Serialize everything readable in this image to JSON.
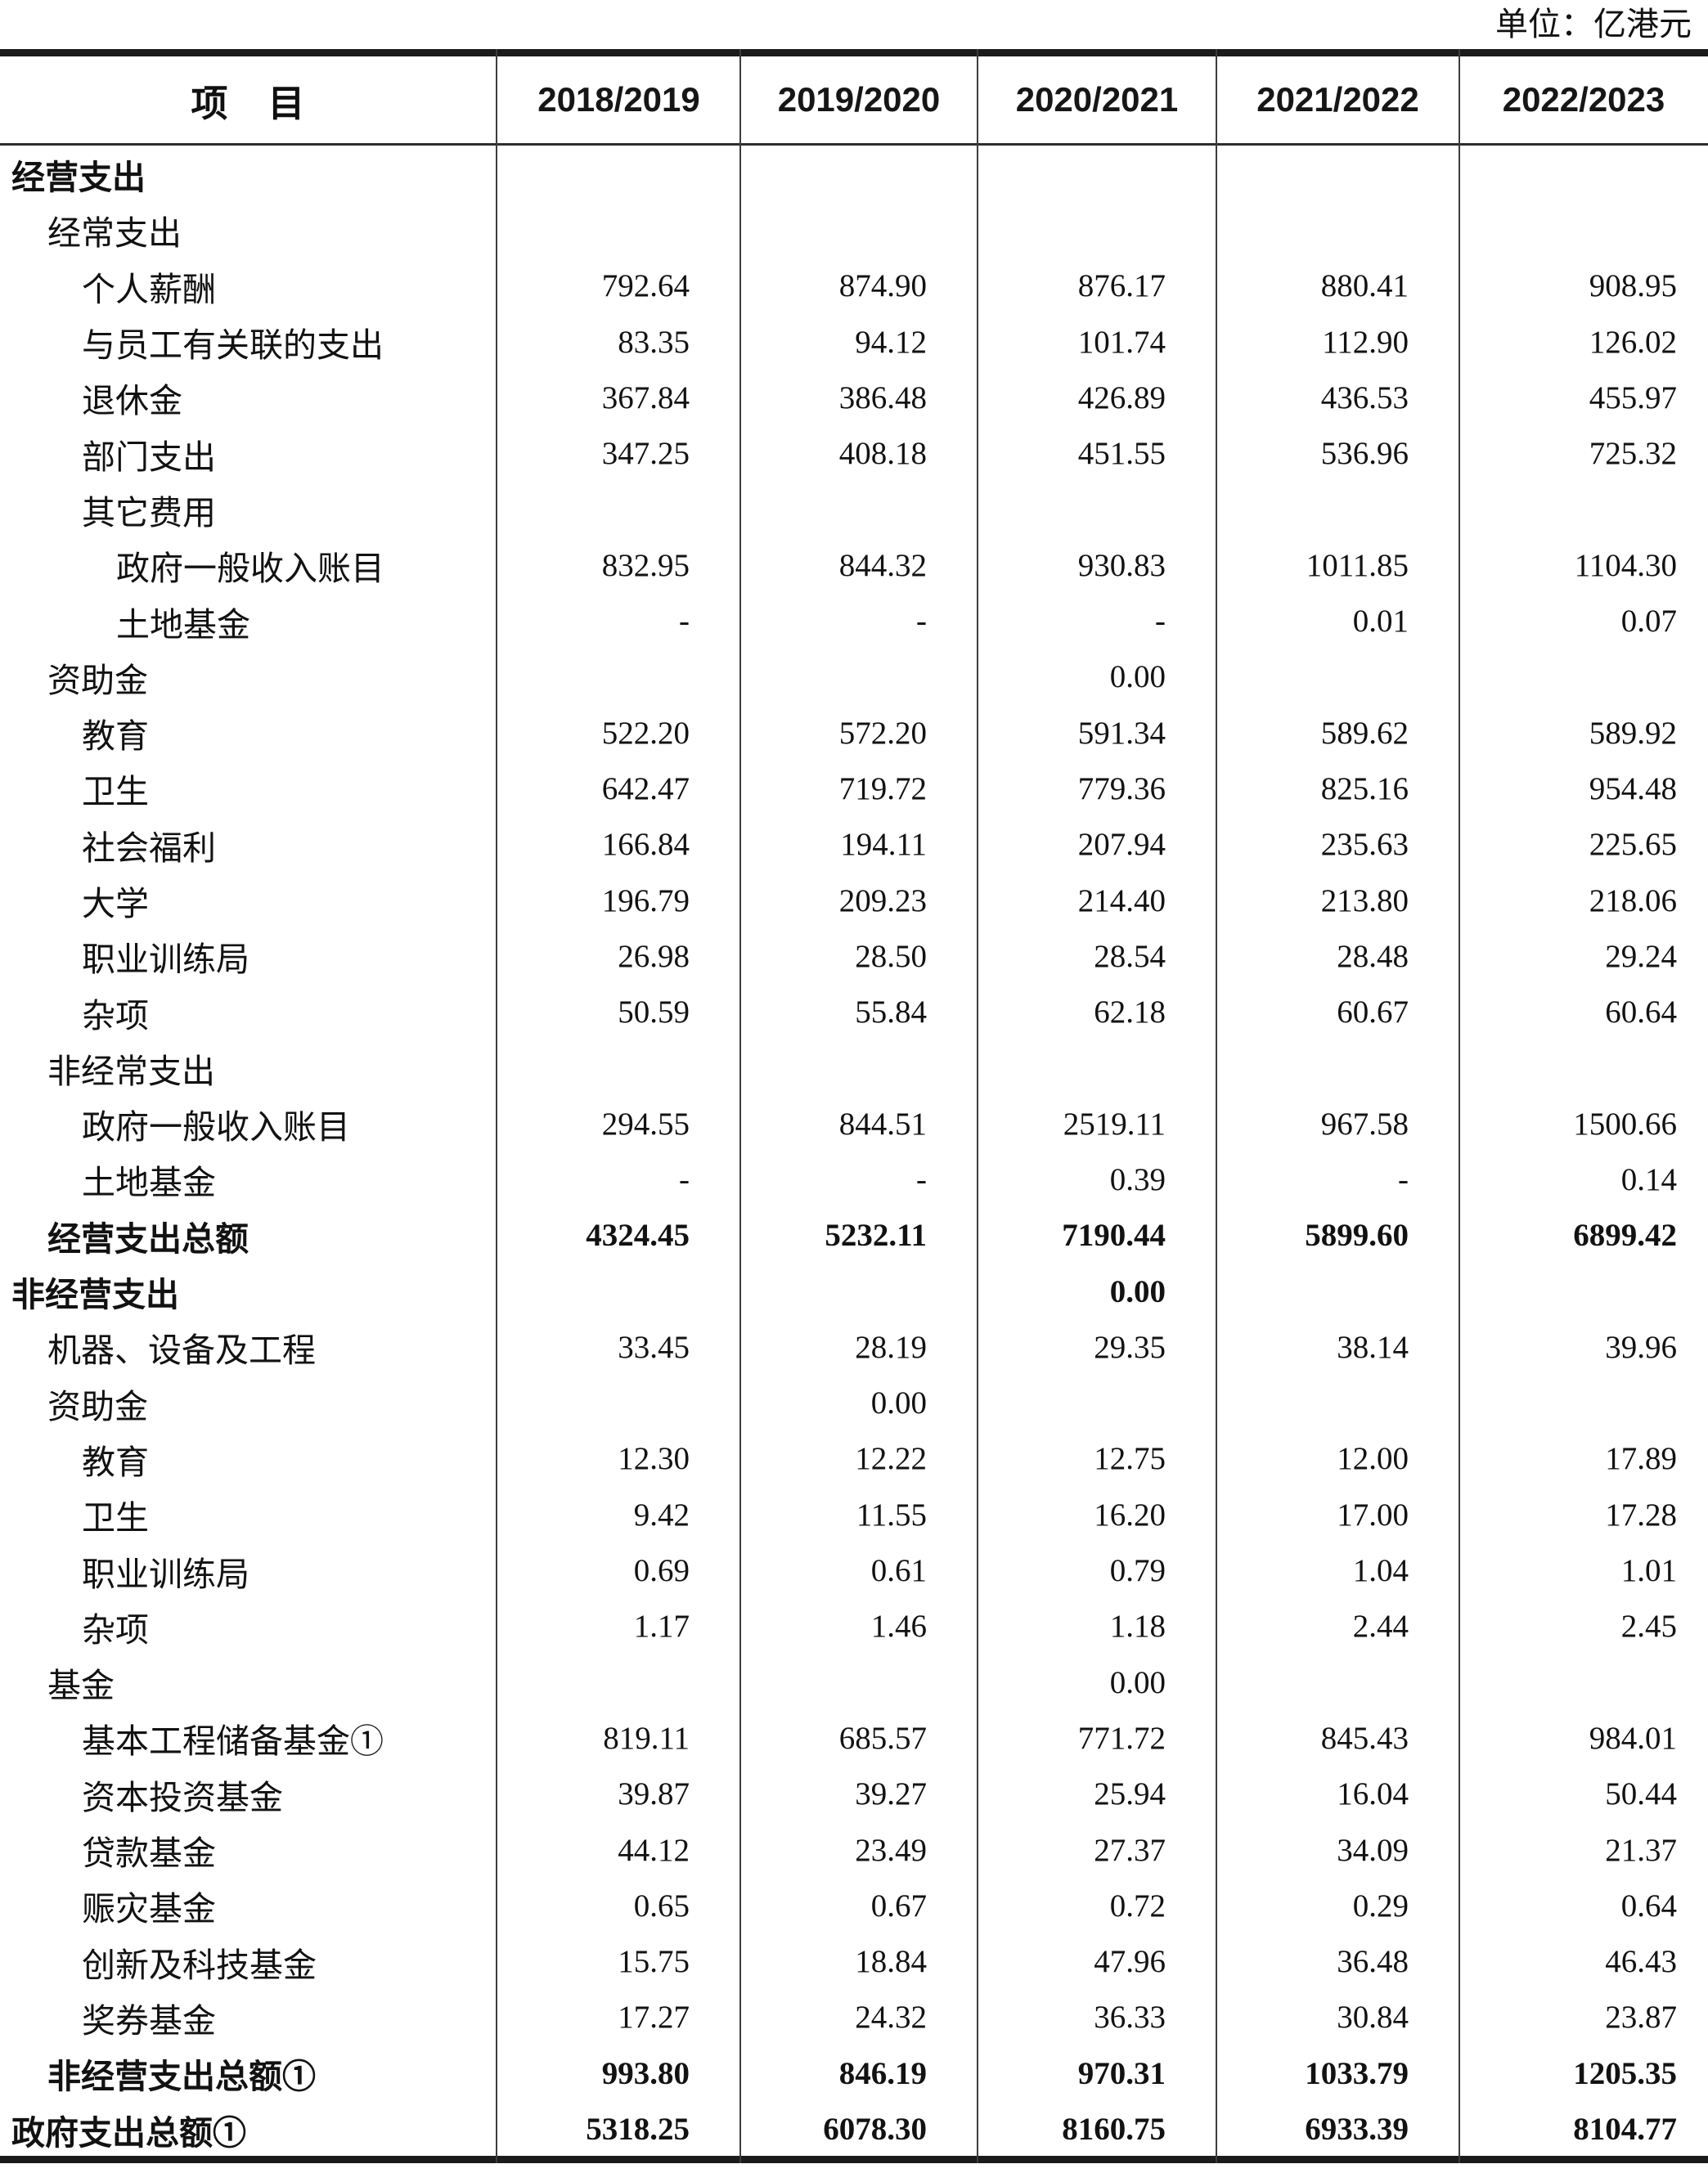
{
  "unit_label": "单位：亿港元",
  "table": {
    "header": {
      "item_label": "项　目",
      "years": [
        "2018/2019",
        "2019/2020",
        "2020/2021",
        "2021/2022",
        "2022/2023"
      ]
    },
    "rows": [
      {
        "label": "经营支出",
        "indent": 0,
        "bold": true,
        "values": [
          "",
          "",
          "",
          "",
          ""
        ]
      },
      {
        "label": "经常支出",
        "indent": 1,
        "bold": false,
        "values": [
          "",
          "",
          "",
          "",
          ""
        ]
      },
      {
        "label": "个人薪酬",
        "indent": 2,
        "bold": false,
        "values": [
          "792.64",
          "874.90",
          "876.17",
          "880.41",
          "908.95"
        ]
      },
      {
        "label": "与员工有关联的支出",
        "indent": 2,
        "bold": false,
        "values": [
          "83.35",
          "94.12",
          "101.74",
          "112.90",
          "126.02"
        ]
      },
      {
        "label": "退休金",
        "indent": 2,
        "bold": false,
        "values": [
          "367.84",
          "386.48",
          "426.89",
          "436.53",
          "455.97"
        ]
      },
      {
        "label": "部门支出",
        "indent": 2,
        "bold": false,
        "values": [
          "347.25",
          "408.18",
          "451.55",
          "536.96",
          "725.32"
        ]
      },
      {
        "label": "其它费用",
        "indent": 2,
        "bold": false,
        "values": [
          "",
          "",
          "",
          "",
          ""
        ]
      },
      {
        "label": "政府一般收入账目",
        "indent": 3,
        "bold": false,
        "values": [
          "832.95",
          "844.32",
          "930.83",
          "1011.85",
          "1104.30"
        ]
      },
      {
        "label": "土地基金",
        "indent": 3,
        "bold": false,
        "values": [
          "-",
          "-",
          "-",
          "0.01",
          "0.07"
        ]
      },
      {
        "label": "资助金",
        "indent": 1,
        "bold": false,
        "values": [
          "",
          "",
          "0.00",
          "",
          ""
        ]
      },
      {
        "label": "教育",
        "indent": 2,
        "bold": false,
        "values": [
          "522.20",
          "572.20",
          "591.34",
          "589.62",
          "589.92"
        ]
      },
      {
        "label": "卫生",
        "indent": 2,
        "bold": false,
        "values": [
          "642.47",
          "719.72",
          "779.36",
          "825.16",
          "954.48"
        ]
      },
      {
        "label": "社会福利",
        "indent": 2,
        "bold": false,
        "values": [
          "166.84",
          "194.11",
          "207.94",
          "235.63",
          "225.65"
        ]
      },
      {
        "label": "大学",
        "indent": 2,
        "bold": false,
        "values": [
          "196.79",
          "209.23",
          "214.40",
          "213.80",
          "218.06"
        ]
      },
      {
        "label": "职业训练局",
        "indent": 2,
        "bold": false,
        "values": [
          "26.98",
          "28.50",
          "28.54",
          "28.48",
          "29.24"
        ]
      },
      {
        "label": "杂项",
        "indent": 2,
        "bold": false,
        "values": [
          "50.59",
          "55.84",
          "62.18",
          "60.67",
          "60.64"
        ]
      },
      {
        "label": "非经常支出",
        "indent": 1,
        "bold": false,
        "values": [
          "",
          "",
          "",
          "",
          ""
        ]
      },
      {
        "label": "政府一般收入账目",
        "indent": 2,
        "bold": false,
        "values": [
          "294.55",
          "844.51",
          "2519.11",
          "967.58",
          "1500.66"
        ]
      },
      {
        "label": "土地基金",
        "indent": 2,
        "bold": false,
        "values": [
          "-",
          "-",
          "0.39",
          "-",
          "0.14"
        ]
      },
      {
        "label": "经营支出总额",
        "indent": 1,
        "bold": true,
        "values": [
          "4324.45",
          "5232.11",
          "7190.44",
          "5899.60",
          "6899.42"
        ]
      },
      {
        "label": "非经营支出",
        "indent": 0,
        "bold": true,
        "values": [
          "",
          "",
          "0.00",
          "",
          ""
        ]
      },
      {
        "label": "机器、设备及工程",
        "indent": 1,
        "bold": false,
        "values": [
          "33.45",
          "28.19",
          "29.35",
          "38.14",
          "39.96"
        ]
      },
      {
        "label": "资助金",
        "indent": 1,
        "bold": false,
        "values": [
          "",
          "0.00",
          "",
          "",
          ""
        ]
      },
      {
        "label": "教育",
        "indent": 2,
        "bold": false,
        "values": [
          "12.30",
          "12.22",
          "12.75",
          "12.00",
          "17.89"
        ]
      },
      {
        "label": "卫生",
        "indent": 2,
        "bold": false,
        "values": [
          "9.42",
          "11.55",
          "16.20",
          "17.00",
          "17.28"
        ]
      },
      {
        "label": "职业训练局",
        "indent": 2,
        "bold": false,
        "values": [
          "0.69",
          "0.61",
          "0.79",
          "1.04",
          "1.01"
        ]
      },
      {
        "label": "杂项",
        "indent": 2,
        "bold": false,
        "values": [
          "1.17",
          "1.46",
          "1.18",
          "2.44",
          "2.45"
        ]
      },
      {
        "label": "基金",
        "indent": 1,
        "bold": false,
        "values": [
          "",
          "",
          "0.00",
          "",
          ""
        ]
      },
      {
        "label": "基本工程储备基金①",
        "indent": 2,
        "bold": false,
        "values": [
          "819.11",
          "685.57",
          "771.72",
          "845.43",
          "984.01"
        ]
      },
      {
        "label": "资本投资基金",
        "indent": 2,
        "bold": false,
        "values": [
          "39.87",
          "39.27",
          "25.94",
          "16.04",
          "50.44"
        ]
      },
      {
        "label": "贷款基金",
        "indent": 2,
        "bold": false,
        "values": [
          "44.12",
          "23.49",
          "27.37",
          "34.09",
          "21.37"
        ]
      },
      {
        "label": "赈灾基金",
        "indent": 2,
        "bold": false,
        "values": [
          "0.65",
          "0.67",
          "0.72",
          "0.29",
          "0.64"
        ]
      },
      {
        "label": "创新及科技基金",
        "indent": 2,
        "bold": false,
        "values": [
          "15.75",
          "18.84",
          "47.96",
          "36.48",
          "46.43"
        ]
      },
      {
        "label": "奖券基金",
        "indent": 2,
        "bold": false,
        "values": [
          "17.27",
          "24.32",
          "36.33",
          "30.84",
          "23.87"
        ]
      },
      {
        "label": "非经营支出总额①",
        "indent": 1,
        "bold": true,
        "values": [
          "993.80",
          "846.19",
          "970.31",
          "1033.79",
          "1205.35"
        ]
      },
      {
        "label": "政府支出总额①",
        "indent": 0,
        "bold": true,
        "values": [
          "5318.25",
          "6078.30",
          "8160.75",
          "6933.39",
          "8104.77"
        ]
      }
    ]
  }
}
